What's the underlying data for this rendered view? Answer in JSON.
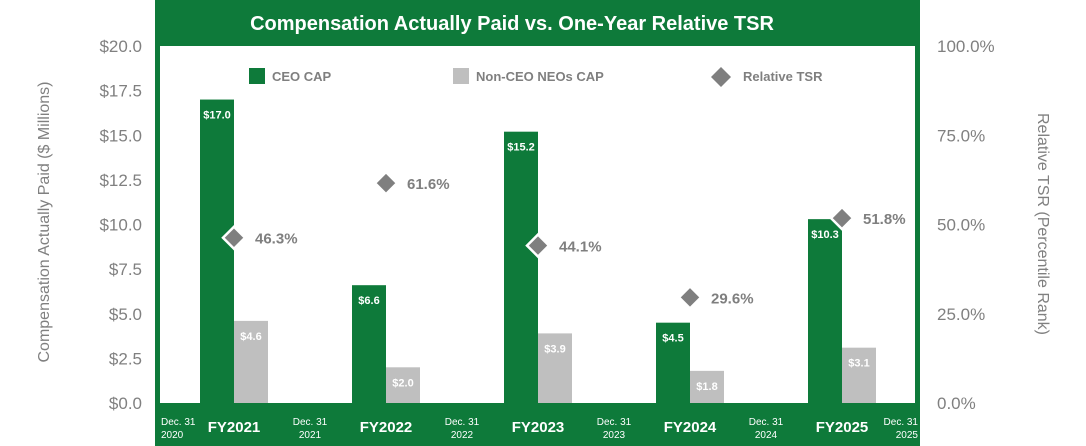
{
  "chart_data": {
    "type": "bar",
    "title": "Compensation Actually Paid vs. One-Year Relative TSR",
    "ylabel": "Compensation Actually Paid ($ Millions)",
    "y2label": "Relative TSR (Percentile Rank)",
    "ylim": [
      0,
      20
    ],
    "y2lim": [
      0,
      100
    ],
    "y_ticks": [
      "$0.0",
      "$2.5",
      "$5.0",
      "$7.5",
      "$10.0",
      "$12.5",
      "$15.0",
      "$17.5",
      "$20.0"
    ],
    "y2_ticks": [
      "0.0%",
      "25.0%",
      "50.0%",
      "75.0%",
      "100.0%"
    ],
    "categories": [
      "FY2021",
      "FY2022",
      "FY2023",
      "FY2024",
      "FY2025"
    ],
    "date_labels": [
      {
        "line1": "Dec. 31",
        "line2": "2020"
      },
      {
        "line1": "Dec. 31",
        "line2": "2021"
      },
      {
        "line1": "Dec. 31",
        "line2": "2022"
      },
      {
        "line1": "Dec. 31",
        "line2": "2023"
      },
      {
        "line1": "Dec. 31",
        "line2": "2024"
      },
      {
        "line1": "Dec. 31",
        "line2": "2025"
      }
    ],
    "series": [
      {
        "name": "CEO CAP",
        "values": [
          17.0,
          6.6,
          15.2,
          4.5,
          10.3
        ],
        "labels": [
          "$17.0",
          "$6.6",
          "$15.2",
          "$4.5",
          "$10.3"
        ],
        "color": "#0e7a3a"
      },
      {
        "name": "Non-CEO NEOs CAP",
        "values": [
          4.6,
          2.0,
          3.9,
          1.8,
          3.1
        ],
        "labels": [
          "$4.6",
          "$2.0",
          "$3.9",
          "$1.8",
          "$3.1"
        ],
        "color": "#bfbfbf"
      },
      {
        "name": "Relative TSR",
        "values": [
          46.3,
          61.6,
          44.1,
          29.6,
          51.8
        ],
        "labels": [
          "46.3%",
          "61.6%",
          "44.1%",
          "29.6%",
          "51.8%"
        ],
        "color": "#7f7f7f",
        "axis": "secondary",
        "marker": "diamond"
      }
    ],
    "legend": [
      "CEO CAP",
      "Non-CEO NEOs CAP",
      "Relative TSR"
    ],
    "colors": {
      "frame": "#0e7a3a",
      "axis_text": "#808080",
      "tsr_marker": "#7f7f7f"
    }
  }
}
